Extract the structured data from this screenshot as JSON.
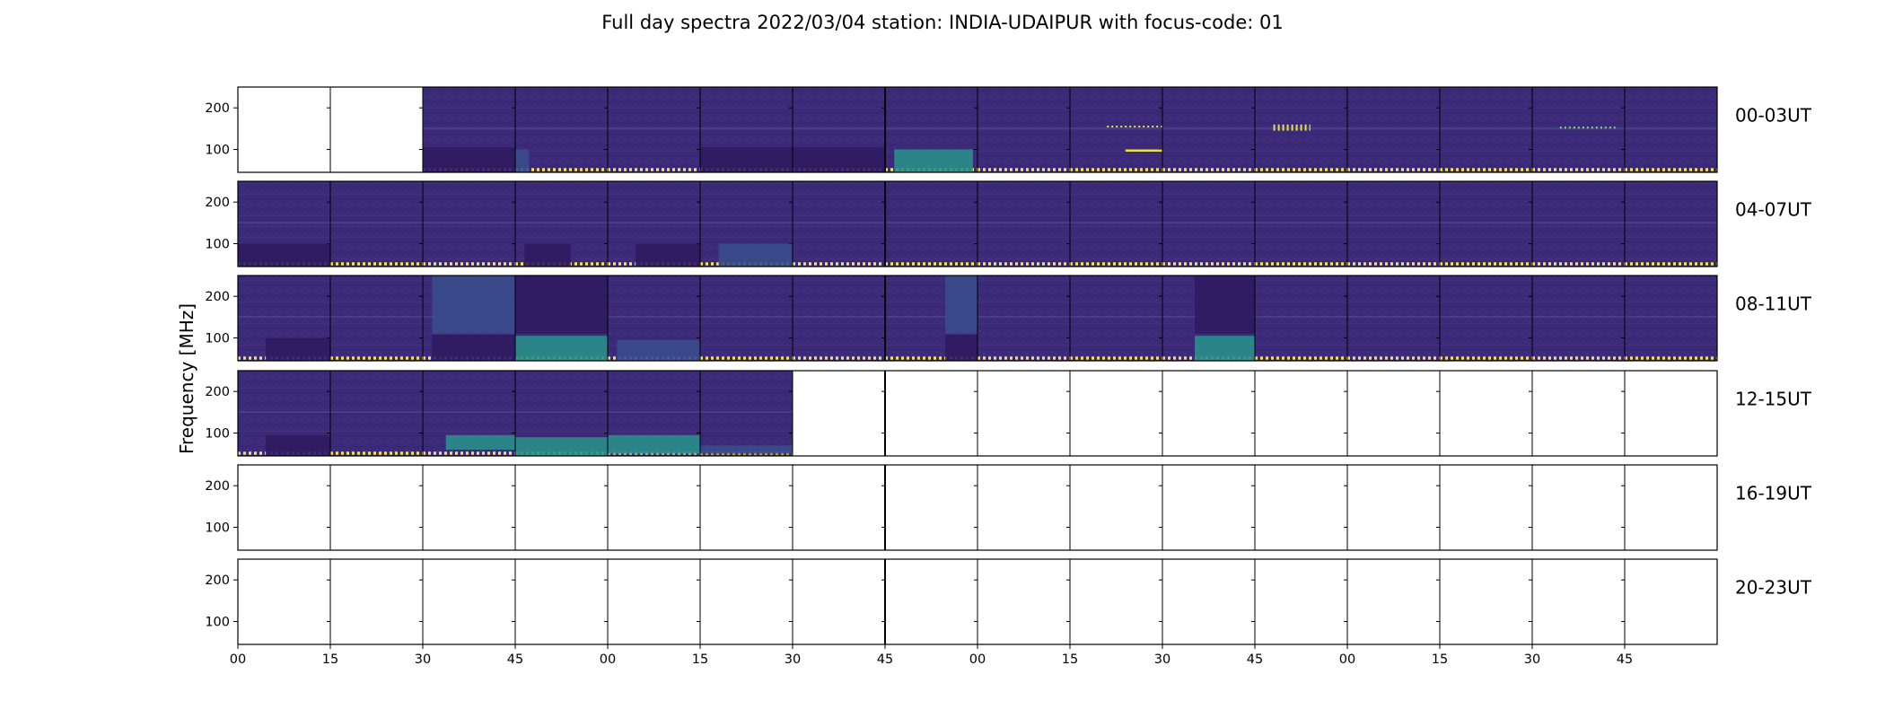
{
  "chart_data": {
    "type": "heatmap",
    "title": "Full day spectra 2022/03/04 station: INDIA-UDAIPUR with focus-code: 01",
    "ylabel": "Frequency [MHz]",
    "xlabel": "",
    "x_tick_labels": [
      "00",
      "15",
      "30",
      "45",
      "00",
      "15",
      "30",
      "45",
      "00",
      "15",
      "30",
      "45",
      "00",
      "15",
      "30",
      "45"
    ],
    "y_ticks": [
      200,
      100
    ],
    "y_tick_labels": [
      "200",
      "100"
    ],
    "ylim": [
      45,
      250
    ],
    "colormap": "viridis",
    "panels_per_row": 16,
    "panel_minutes": 15,
    "rows": [
      {
        "label": "00-03UT",
        "data_panels": [
          2,
          3,
          4,
          5,
          6,
          7,
          8,
          9,
          10,
          11,
          12,
          13,
          14,
          15
        ]
      },
      {
        "label": "04-07UT",
        "data_panels": [
          0,
          1,
          2,
          3,
          4,
          5,
          6,
          7,
          8,
          9,
          10,
          11,
          12,
          13,
          14,
          15
        ]
      },
      {
        "label": "08-11UT",
        "data_panels": [
          0,
          1,
          2,
          3,
          4,
          5,
          6,
          7,
          8,
          9,
          10,
          11,
          12,
          13,
          14,
          15
        ]
      },
      {
        "label": "12-15UT",
        "data_panels": [
          0,
          1,
          2,
          3,
          4,
          5
        ]
      },
      {
        "label": "16-19UT",
        "data_panels": []
      },
      {
        "label": "20-23UT",
        "data_panels": []
      }
    ],
    "features": [
      {
        "row": 0,
        "panel": 2,
        "kind": "block",
        "t": [
          0,
          1
        ],
        "f": [
          45,
          105
        ],
        "tone": "dark"
      },
      {
        "row": 0,
        "panel": 3,
        "kind": "block",
        "t": [
          0,
          0.15
        ],
        "f": [
          45,
          100
        ],
        "tone": "mid"
      },
      {
        "row": 0,
        "panel": 5,
        "kind": "block",
        "t": [
          0,
          1
        ],
        "f": [
          45,
          105
        ],
        "tone": "dark"
      },
      {
        "row": 0,
        "panel": 6,
        "kind": "block",
        "t": [
          0,
          1
        ],
        "f": [
          45,
          105
        ],
        "tone": "dark"
      },
      {
        "row": 0,
        "panel": 7,
        "kind": "block",
        "t": [
          0.1,
          0.95
        ],
        "f": [
          45,
          100
        ],
        "tone": "teal"
      },
      {
        "row": 0,
        "panel": 9,
        "kind": "line",
        "t": [
          0.6,
          1
        ],
        "f": [
          98,
          100
        ],
        "tone": "yellow"
      },
      {
        "row": 0,
        "panel": 9,
        "kind": "dots",
        "t": [
          0.4,
          1
        ],
        "f": [
          154,
          156
        ],
        "tone": "yellow"
      },
      {
        "row": 0,
        "panel": 11,
        "kind": "dots",
        "t": [
          0.2,
          0.6
        ],
        "f": [
          145,
          160
        ],
        "tone": "yellow"
      },
      {
        "row": 0,
        "panel": 14,
        "kind": "dots",
        "t": [
          0.3,
          0.9
        ],
        "f": [
          150,
          155
        ],
        "tone": "green"
      },
      {
        "row": 1,
        "panel": 0,
        "kind": "block",
        "t": [
          0,
          1
        ],
        "f": [
          45,
          100
        ],
        "tone": "dark"
      },
      {
        "row": 1,
        "panel": 3,
        "kind": "block",
        "t": [
          0.1,
          0.6
        ],
        "f": [
          45,
          100
        ],
        "tone": "dark"
      },
      {
        "row": 1,
        "panel": 4,
        "kind": "block",
        "t": [
          0.3,
          1
        ],
        "f": [
          45,
          100
        ],
        "tone": "dark"
      },
      {
        "row": 1,
        "panel": 5,
        "kind": "block",
        "t": [
          0.2,
          1
        ],
        "f": [
          45,
          100
        ],
        "tone": "mid"
      },
      {
        "row": 2,
        "panel": 0,
        "kind": "block",
        "t": [
          0.3,
          1
        ],
        "f": [
          45,
          100
        ],
        "tone": "dark"
      },
      {
        "row": 2,
        "panel": 2,
        "kind": "block",
        "t": [
          0.1,
          1
        ],
        "f": [
          110,
          250
        ],
        "tone": "mid"
      },
      {
        "row": 2,
        "panel": 2,
        "kind": "block",
        "t": [
          0.1,
          1
        ],
        "f": [
          45,
          108
        ],
        "tone": "dark"
      },
      {
        "row": 2,
        "panel": 3,
        "kind": "block",
        "t": [
          0,
          1
        ],
        "f": [
          110,
          250
        ],
        "tone": "dark"
      },
      {
        "row": 2,
        "panel": 3,
        "kind": "block",
        "t": [
          0,
          1
        ],
        "f": [
          45,
          105
        ],
        "tone": "teal"
      },
      {
        "row": 2,
        "panel": 4,
        "kind": "block",
        "t": [
          0.1,
          1
        ],
        "f": [
          45,
          95
        ],
        "tone": "mid"
      },
      {
        "row": 2,
        "panel": 7,
        "kind": "block",
        "t": [
          0.65,
          1
        ],
        "f": [
          110,
          250
        ],
        "tone": "mid"
      },
      {
        "row": 2,
        "panel": 7,
        "kind": "block",
        "t": [
          0.65,
          1
        ],
        "f": [
          45,
          108
        ],
        "tone": "dark"
      },
      {
        "row": 2,
        "panel": 10,
        "kind": "block",
        "t": [
          0.35,
          1
        ],
        "f": [
          110,
          250
        ],
        "tone": "dark"
      },
      {
        "row": 2,
        "panel": 10,
        "kind": "block",
        "t": [
          0.35,
          1
        ],
        "f": [
          45,
          105
        ],
        "tone": "teal"
      },
      {
        "row": 3,
        "panel": 0,
        "kind": "block",
        "t": [
          0.3,
          1
        ],
        "f": [
          45,
          95
        ],
        "tone": "dark"
      },
      {
        "row": 3,
        "panel": 2,
        "kind": "block",
        "t": [
          0.25,
          1
        ],
        "f": [
          60,
          95
        ],
        "tone": "teal"
      },
      {
        "row": 3,
        "panel": 3,
        "kind": "block",
        "t": [
          0,
          1
        ],
        "f": [
          45,
          90
        ],
        "tone": "teal"
      },
      {
        "row": 3,
        "panel": 4,
        "kind": "block",
        "t": [
          0,
          1
        ],
        "f": [
          50,
          95
        ],
        "tone": "teal"
      },
      {
        "row": 3,
        "panel": 5,
        "kind": "block",
        "t": [
          0,
          1
        ],
        "f": [
          50,
          70
        ],
        "tone": "mid"
      }
    ]
  }
}
